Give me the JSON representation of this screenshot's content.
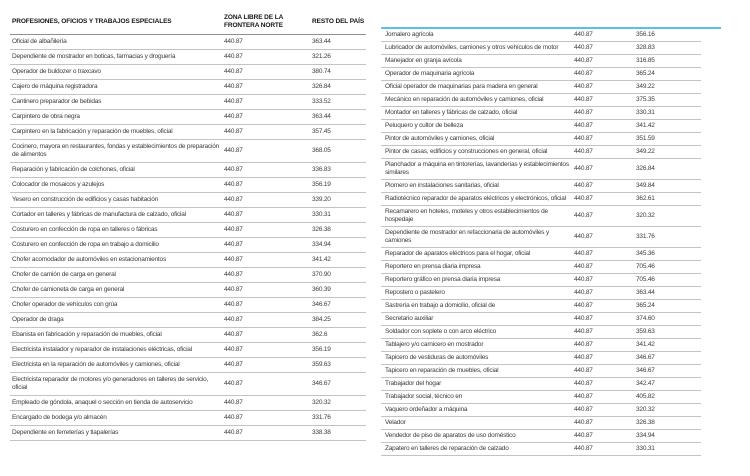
{
  "colors": {
    "accent_line": "#55c4e8",
    "row_line": "#c3c3c3",
    "header_line": "#8f8f8f",
    "text": "#3c3c3c",
    "header_text": "#141414",
    "page_background": "#ffffff"
  },
  "left_table": {
    "headers": [
      "PROFESIONES, OFICIOS Y TRABAJOS ESPECIALES",
      "ZONA LIBRE DE LA FRONTERA NORTE",
      "RESTO DEL PAÍS"
    ],
    "rows": [
      {
        "profession": "Oficial de albañilería",
        "zona_libre": "440.87",
        "resto_pais": "363.44"
      },
      {
        "profession": "Dependiente de mostrador en boticas, farmacias y droguería",
        "zona_libre": "440.87",
        "resto_pais": "321.26"
      },
      {
        "profession": "Operador de buldozer o traxcavo",
        "zona_libre": "440.87",
        "resto_pais": "380.74"
      },
      {
        "profession": "Cajero de máquina registradora",
        "zona_libre": "440.87",
        "resto_pais": "326.84"
      },
      {
        "profession": "Cantinero preparador de bebidas",
        "zona_libre": "440.87",
        "resto_pais": "333.52"
      },
      {
        "profession": "Carpintero de obra negra",
        "zona_libre": "440.87",
        "resto_pais": "363.44"
      },
      {
        "profession": "Carpintero en la fabricación y reparación de muebles, oficial",
        "zona_libre": "440.87",
        "resto_pais": "357.45"
      },
      {
        "profession": "Cocinero, mayora en restaurantes, fondas y establecimientos de preparación de alimentos",
        "zona_libre": "440.87",
        "resto_pais": "368.05"
      },
      {
        "profession": "Reparación y fabricación de colchones, oficial",
        "zona_libre": "440.87",
        "resto_pais": "336.83"
      },
      {
        "profession": "Colocador de mosaicos y azulejos",
        "zona_libre": "440.87",
        "resto_pais": "356.19"
      },
      {
        "profession": "Yesero en construcción de edificios y casas habitación",
        "zona_libre": "440.87",
        "resto_pais": "339.20"
      },
      {
        "profession": "Cortador en talleres y fábricas de manufactura de calzado, oficial",
        "zona_libre": "440.87",
        "resto_pais": "330.31"
      },
      {
        "profession": "Costurero en confección de ropa en talleres o fábricas",
        "zona_libre": "440.87",
        "resto_pais": "326.38"
      },
      {
        "profession": "Costurero en confección de ropa en trabajo a domicilio",
        "zona_libre": "440.87",
        "resto_pais": "334.94"
      },
      {
        "profession": "Chofer acomodador de automóviles en estacionamientos",
        "zona_libre": "440.87",
        "resto_pais": "341.42"
      },
      {
        "profession": "Chofer de camión de carga en general",
        "zona_libre": "440.87",
        "resto_pais": "370.90"
      },
      {
        "profession": "Chofer de camioneta de carga en general",
        "zona_libre": "440.87",
        "resto_pais": "360.39"
      },
      {
        "profession": "Chofer operador de vehículos con grúa",
        "zona_libre": "440.87",
        "resto_pais": "346.67"
      },
      {
        "profession": "Operador de draga",
        "zona_libre": "440.87",
        "resto_pais": "384.25"
      },
      {
        "profession": "Ebanista en fabricación y reparación de muebles, oficial",
        "zona_libre": "440.87",
        "resto_pais": "362.6"
      },
      {
        "profession": "Electricista instalador y reparador de instalaciones eléctricas, oficial",
        "zona_libre": "440.87",
        "resto_pais": "356.19"
      },
      {
        "profession": "Electricista en la reparación de automóviles y camiones, oficial",
        "zona_libre": "440.87",
        "resto_pais": "359.63"
      },
      {
        "profession": "Electricista reparador de motores y/o generadores en talleres de servicio, oficial",
        "zona_libre": "440.87",
        "resto_pais": "346.67"
      },
      {
        "profession": "Empleado de góndola, anaquel o sección en tienda de autoservicio",
        "zona_libre": "440.87",
        "resto_pais": "320.32"
      },
      {
        "profession": "Encargado de bodega y/o almacén",
        "zona_libre": "440.87",
        "resto_pais": "331.76"
      },
      {
        "profession": "Dependiente en ferreterías y tlapalerías",
        "zona_libre": "440.87",
        "resto_pais": "338.38"
      }
    ]
  },
  "right_table": {
    "rows": [
      {
        "profession": "Jornalero agrícola",
        "zona_libre": "440.87",
        "resto_pais": "356.16"
      },
      {
        "profession": "Lubricador de automóviles, camiones y otros vehículos de motor",
        "zona_libre": "440.87",
        "resto_pais": "328.83"
      },
      {
        "profession": "Manejador en granja avícola",
        "zona_libre": "440.87",
        "resto_pais": "316.85"
      },
      {
        "profession": "Operador de maquinaria agrícola",
        "zona_libre": "440.87",
        "resto_pais": "365.24"
      },
      {
        "profession": "Oficial operador de maquinarias para madera en general",
        "zona_libre": "440.87",
        "resto_pais": "349.22"
      },
      {
        "profession": "Mecánico en reparación de automóviles y camiones, oficial",
        "zona_libre": "440.87",
        "resto_pais": "375.35"
      },
      {
        "profession": "Montador en talleres y fábricas de calzado, oficial",
        "zona_libre": "440.87",
        "resto_pais": "330.31"
      },
      {
        "profession": "Peluquero y cultor de belleza",
        "zona_libre": "440.87",
        "resto_pais": "341.42"
      },
      {
        "profession": "Pintor de automóviles y camiones, oficial",
        "zona_libre": "440.87",
        "resto_pais": "351.59"
      },
      {
        "profession": "Pintor de casas, edificios y construcciones en general, oficial",
        "zona_libre": "440.87",
        "resto_pais": "349.22"
      },
      {
        "profession": "Planchador a máquina en tintorerías, lavanderías y establecimientos similares",
        "zona_libre": "440.87",
        "resto_pais": "326.84"
      },
      {
        "profession": "Plomero en instalaciones sanitarias, oficial",
        "zona_libre": "440.87",
        "resto_pais": "349.84"
      },
      {
        "profession": "Radiotécnico reparador de aparatos eléctricos y electrónicos, oficial",
        "zona_libre": "440.87",
        "resto_pais": "362.61"
      },
      {
        "profession": "Recamarero en hoteles, moteles y otros establecimientos de hospedaje",
        "zona_libre": "440.87",
        "resto_pais": "320.32"
      },
      {
        "profession": "Dependiente de mostrador en refaccionaria de automóviles y camiones",
        "zona_libre": "440.87",
        "resto_pais": "331.76"
      },
      {
        "profession": "Reparador de aparatos eléctricos para el hogar, oficial",
        "zona_libre": "440.87",
        "resto_pais": "345.36"
      },
      {
        "profession": "Reportero en prensa diaria impresa",
        "zona_libre": "440.87",
        "resto_pais": "705.46"
      },
      {
        "profession": "Reportero gráfico en prensa diaria impresa",
        "zona_libre": "440.87",
        "resto_pais": "705.46"
      },
      {
        "profession": "Repostero o pastelero",
        "zona_libre": "440.87",
        "resto_pais": "363.44"
      },
      {
        "profession": "Sastrería en trabajo a domicilio, oficial de",
        "zona_libre": "440.87",
        "resto_pais": "365.24"
      },
      {
        "profession": "Secretario auxiliar",
        "zona_libre": "440.87",
        "resto_pais": "374.60"
      },
      {
        "profession": "Soldador con soplete o con arco eléctrico",
        "zona_libre": "440.87",
        "resto_pais": "359.63"
      },
      {
        "profession": "Tablajero y/o carnicero en mostrador",
        "zona_libre": "440.87",
        "resto_pais": "341.42"
      },
      {
        "profession": "Tapicero de vestiduras de automóviles",
        "zona_libre": "440.87",
        "resto_pais": "346.67"
      },
      {
        "profession": "Tapicero en reparación de muebles, oficial",
        "zona_libre": "440.87",
        "resto_pais": "346.67"
      },
      {
        "profession": "Trabajador del hogar",
        "zona_libre": "440.87",
        "resto_pais": "342.47"
      },
      {
        "profession": "Trabajador social, técnico en",
        "zona_libre": "440.87",
        "resto_pais": "405.82"
      },
      {
        "profession": "Vaquero ordeñador a máquina",
        "zona_libre": "440.87",
        "resto_pais": "320.32"
      },
      {
        "profession": "Velador",
        "zona_libre": "440.87",
        "resto_pais": "326.38"
      },
      {
        "profession": "Vendedor de piso de aparatos de uso doméstico",
        "zona_libre": "440.87",
        "resto_pais": "334.94"
      },
      {
        "profession": "Zapatero en talleres de reparación de calzado",
        "zona_libre": "440.87",
        "resto_pais": "330.31"
      }
    ]
  }
}
